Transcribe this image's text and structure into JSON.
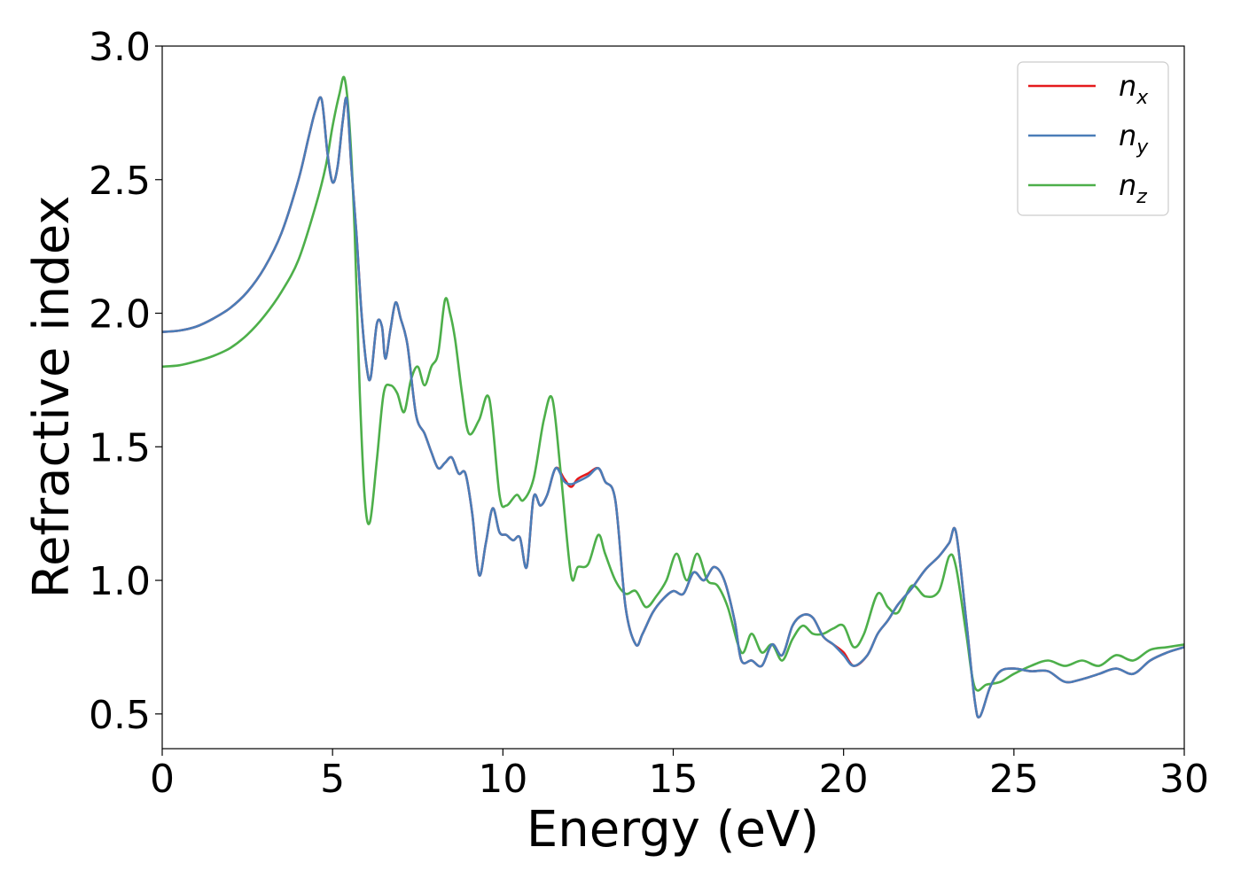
{
  "chart_data": {
    "type": "line",
    "title": "",
    "xlabel": "Energy (eV)",
    "ylabel": "Refractive index",
    "xlim": [
      0,
      30
    ],
    "ylim": [
      0.37,
      3.0
    ],
    "xticks": [
      0,
      5,
      10,
      15,
      20,
      25,
      30
    ],
    "xtick_labels": [
      "0",
      "5",
      "10",
      "15",
      "20",
      "25",
      "30"
    ],
    "yticks": [
      0.5,
      1.0,
      1.5,
      2.0,
      2.5,
      3.0
    ],
    "ytick_labels": [
      "0.5",
      "1.0",
      "1.5",
      "2.0",
      "2.5",
      "3.0"
    ],
    "grid": false,
    "legend_position": "top-right",
    "series": [
      {
        "name": "n",
        "subscript": "x",
        "color": "#e41a1c",
        "x": [
          0,
          0.5,
          1,
          1.5,
          2,
          2.5,
          3,
          3.5,
          4,
          4.3,
          4.5,
          4.68,
          4.85,
          5.0,
          5.15,
          5.3,
          5.42,
          5.55,
          5.7,
          5.85,
          6.0,
          6.12,
          6.3,
          6.45,
          6.55,
          6.7,
          6.85,
          7.0,
          7.2,
          7.45,
          7.7,
          7.9,
          8.1,
          8.3,
          8.5,
          8.7,
          8.9,
          9.1,
          9.3,
          9.5,
          9.7,
          9.9,
          10.1,
          10.3,
          10.5,
          10.7,
          10.9,
          11.1,
          11.3,
          11.55,
          11.8,
          12.0,
          12.2,
          12.5,
          12.8,
          13.0,
          13.3,
          13.6,
          13.9,
          14.1,
          14.4,
          14.7,
          15.0,
          15.3,
          15.6,
          15.9,
          16.2,
          16.5,
          16.8,
          17.0,
          17.3,
          17.6,
          17.9,
          18.2,
          18.5,
          18.8,
          19.1,
          19.4,
          19.7,
          20.0,
          20.3,
          20.7,
          21.0,
          21.3,
          21.6,
          22.0,
          22.4,
          22.8,
          23.1,
          23.3,
          23.6,
          23.85,
          24.0,
          24.3,
          24.6,
          25.0,
          25.5,
          26.0,
          26.5,
          27.0,
          27.5,
          28.0,
          28.5,
          29.0,
          29.5,
          30.0
        ],
        "y": [
          1.93,
          1.935,
          1.95,
          1.98,
          2.02,
          2.08,
          2.17,
          2.3,
          2.5,
          2.66,
          2.76,
          2.8,
          2.6,
          2.49,
          2.55,
          2.72,
          2.8,
          2.55,
          2.3,
          2.0,
          1.8,
          1.76,
          1.96,
          1.95,
          1.83,
          1.94,
          2.04,
          1.98,
          1.88,
          1.62,
          1.55,
          1.48,
          1.42,
          1.44,
          1.46,
          1.4,
          1.4,
          1.25,
          1.02,
          1.14,
          1.27,
          1.18,
          1.17,
          1.15,
          1.16,
          1.05,
          1.31,
          1.28,
          1.32,
          1.42,
          1.38,
          1.35,
          1.38,
          1.4,
          1.42,
          1.37,
          1.3,
          0.9,
          0.76,
          0.8,
          0.88,
          0.93,
          0.96,
          0.95,
          1.03,
          1.0,
          1.05,
          1.0,
          0.85,
          0.7,
          0.7,
          0.68,
          0.76,
          0.72,
          0.83,
          0.87,
          0.86,
          0.79,
          0.76,
          0.73,
          0.68,
          0.72,
          0.8,
          0.85,
          0.91,
          0.97,
          1.04,
          1.09,
          1.14,
          1.18,
          0.85,
          0.55,
          0.49,
          0.6,
          0.66,
          0.67,
          0.66,
          0.66,
          0.62,
          0.63,
          0.65,
          0.67,
          0.65,
          0.7,
          0.73,
          0.75
        ]
      },
      {
        "name": "n",
        "subscript": "y",
        "color": "#4a7db8",
        "x": [
          0,
          0.5,
          1,
          1.5,
          2,
          2.5,
          3,
          3.5,
          4,
          4.3,
          4.5,
          4.68,
          4.85,
          5.0,
          5.15,
          5.3,
          5.42,
          5.55,
          5.7,
          5.85,
          6.0,
          6.12,
          6.3,
          6.45,
          6.55,
          6.7,
          6.85,
          7.0,
          7.2,
          7.45,
          7.7,
          7.9,
          8.1,
          8.3,
          8.5,
          8.7,
          8.9,
          9.1,
          9.3,
          9.5,
          9.7,
          9.9,
          10.1,
          10.3,
          10.5,
          10.7,
          10.9,
          11.1,
          11.3,
          11.55,
          11.8,
          12.0,
          12.2,
          12.5,
          12.8,
          13.0,
          13.3,
          13.6,
          13.9,
          14.1,
          14.4,
          14.7,
          15.0,
          15.3,
          15.6,
          15.9,
          16.2,
          16.5,
          16.8,
          17.0,
          17.3,
          17.6,
          17.9,
          18.2,
          18.5,
          18.8,
          19.1,
          19.4,
          19.7,
          20.0,
          20.3,
          20.7,
          21.0,
          21.3,
          21.6,
          22.0,
          22.4,
          22.8,
          23.1,
          23.3,
          23.6,
          23.85,
          24.0,
          24.3,
          24.6,
          25.0,
          25.5,
          26.0,
          26.5,
          27.0,
          27.5,
          28.0,
          28.5,
          29.0,
          29.5,
          30.0
        ],
        "y": [
          1.93,
          1.935,
          1.95,
          1.98,
          2.02,
          2.08,
          2.17,
          2.3,
          2.5,
          2.66,
          2.76,
          2.8,
          2.6,
          2.49,
          2.55,
          2.72,
          2.8,
          2.55,
          2.3,
          2.0,
          1.8,
          1.76,
          1.96,
          1.95,
          1.83,
          1.94,
          2.04,
          1.98,
          1.88,
          1.62,
          1.55,
          1.48,
          1.42,
          1.44,
          1.46,
          1.4,
          1.4,
          1.25,
          1.02,
          1.14,
          1.27,
          1.18,
          1.17,
          1.15,
          1.16,
          1.05,
          1.31,
          1.28,
          1.32,
          1.42,
          1.37,
          1.36,
          1.37,
          1.39,
          1.42,
          1.37,
          1.3,
          0.9,
          0.76,
          0.8,
          0.88,
          0.93,
          0.96,
          0.95,
          1.03,
          1.0,
          1.05,
          1.0,
          0.85,
          0.7,
          0.7,
          0.68,
          0.76,
          0.72,
          0.83,
          0.87,
          0.86,
          0.79,
          0.76,
          0.72,
          0.68,
          0.72,
          0.8,
          0.85,
          0.91,
          0.97,
          1.04,
          1.09,
          1.14,
          1.18,
          0.85,
          0.55,
          0.49,
          0.6,
          0.66,
          0.67,
          0.66,
          0.66,
          0.62,
          0.63,
          0.65,
          0.67,
          0.65,
          0.7,
          0.73,
          0.75
        ]
      },
      {
        "name": "n",
        "subscript": "z",
        "color": "#4daf4a",
        "x": [
          0,
          0.5,
          1,
          1.5,
          2,
          2.5,
          3,
          3.5,
          4,
          4.5,
          4.8,
          5.0,
          5.2,
          5.35,
          5.5,
          5.65,
          5.8,
          5.95,
          6.1,
          6.3,
          6.5,
          6.7,
          6.9,
          7.1,
          7.3,
          7.5,
          7.7,
          7.9,
          8.1,
          8.3,
          8.45,
          8.6,
          8.8,
          9.0,
          9.3,
          9.6,
          9.9,
          10.1,
          10.4,
          10.6,
          10.9,
          11.2,
          11.45,
          11.7,
          12.0,
          12.2,
          12.5,
          12.8,
          13.0,
          13.3,
          13.6,
          13.9,
          14.2,
          14.5,
          14.8,
          15.1,
          15.4,
          15.7,
          16.0,
          16.3,
          16.6,
          17.0,
          17.3,
          17.6,
          17.9,
          18.2,
          18.5,
          18.8,
          19.1,
          19.4,
          19.7,
          20.0,
          20.3,
          20.6,
          21.0,
          21.3,
          21.6,
          22.0,
          22.4,
          22.8,
          23.1,
          23.3,
          23.6,
          23.85,
          24.2,
          24.6,
          25.0,
          25.5,
          26.0,
          26.5,
          27.0,
          27.5,
          28.0,
          28.5,
          29.0,
          29.5,
          30.0
        ],
        "y": [
          1.8,
          1.805,
          1.82,
          1.84,
          1.87,
          1.92,
          1.99,
          2.08,
          2.2,
          2.4,
          2.55,
          2.7,
          2.82,
          2.88,
          2.7,
          2.3,
          1.7,
          1.3,
          1.22,
          1.45,
          1.7,
          1.73,
          1.7,
          1.63,
          1.75,
          1.8,
          1.73,
          1.8,
          1.85,
          2.05,
          2.0,
          1.9,
          1.7,
          1.55,
          1.6,
          1.68,
          1.32,
          1.28,
          1.32,
          1.3,
          1.38,
          1.6,
          1.68,
          1.4,
          1.02,
          1.05,
          1.06,
          1.17,
          1.1,
          1.0,
          0.95,
          0.96,
          0.9,
          0.94,
          1.0,
          1.1,
          1.0,
          1.1,
          1.0,
          0.98,
          0.9,
          0.73,
          0.8,
          0.73,
          0.76,
          0.7,
          0.78,
          0.83,
          0.8,
          0.8,
          0.82,
          0.83,
          0.75,
          0.8,
          0.95,
          0.9,
          0.88,
          0.98,
          0.94,
          0.96,
          1.09,
          1.05,
          0.8,
          0.6,
          0.61,
          0.62,
          0.65,
          0.68,
          0.7,
          0.68,
          0.7,
          0.68,
          0.72,
          0.7,
          0.74,
          0.75,
          0.76
        ]
      }
    ]
  }
}
